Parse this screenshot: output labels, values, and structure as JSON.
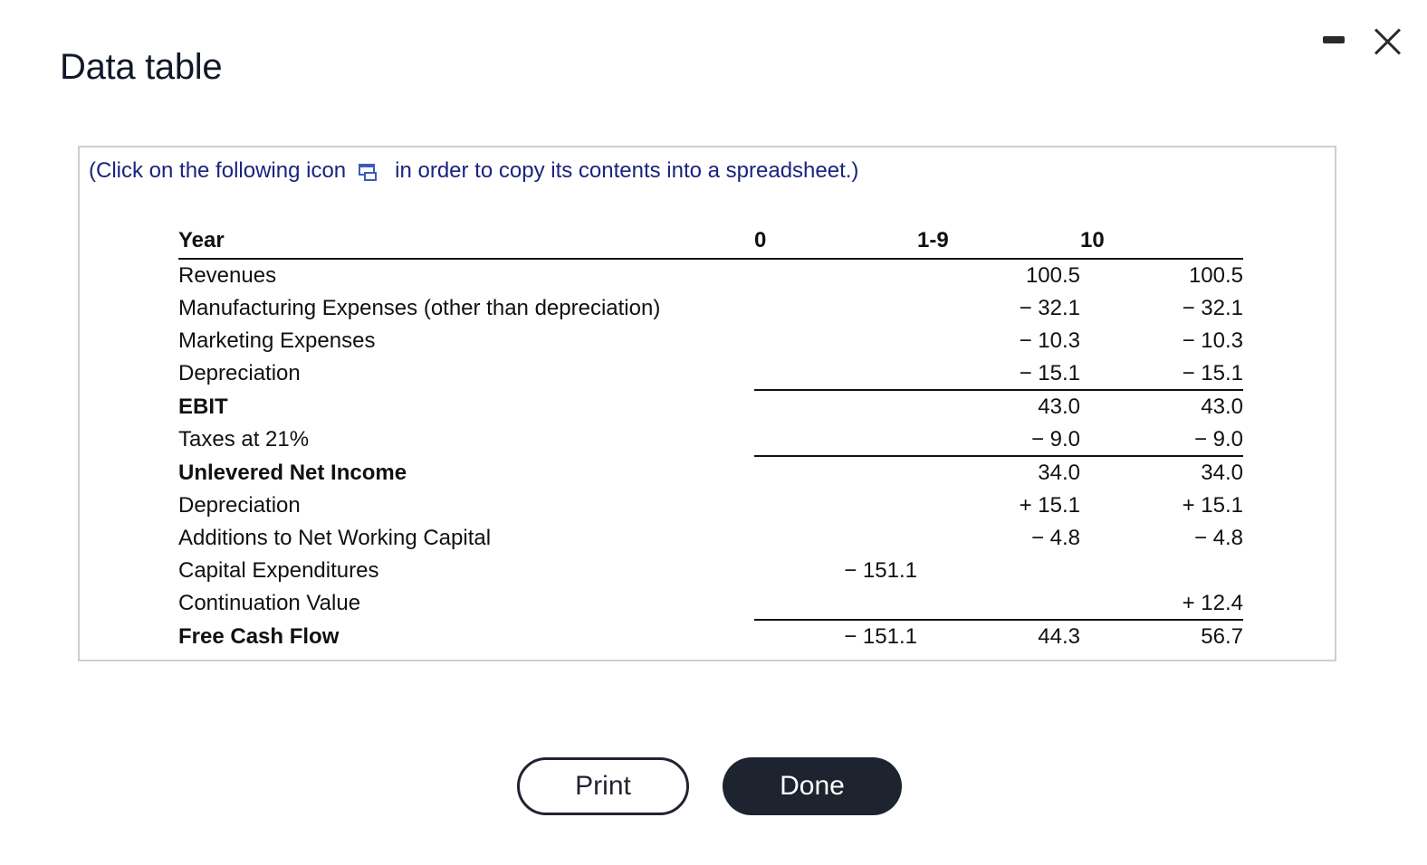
{
  "dialog": {
    "title": "Data table"
  },
  "instruction": {
    "before": "(Click on the following icon",
    "after": "in order to copy its contents into a spreadsheet.)"
  },
  "icons": {
    "copy": "copy-to-spreadsheet-icon",
    "minimize": "minimize-icon",
    "close": "close-icon"
  },
  "table": {
    "headers": [
      "Year",
      "0",
      "1-9",
      "10"
    ],
    "rows": [
      {
        "label": "Revenues",
        "y0": "",
        "y1_9": "100.5",
        "y10": "100.5"
      },
      {
        "label": "Manufacturing Expenses (other than depreciation)",
        "y0": "",
        "y1_9": "− 32.1",
        "y10": "− 32.1"
      },
      {
        "label": "Marketing Expenses",
        "y0": "",
        "y1_9": "− 10.3",
        "y10": "− 10.3"
      },
      {
        "label": "Depreciation",
        "y0": "",
        "y1_9": "− 15.1",
        "y10": "− 15.1"
      },
      {
        "label": "EBIT",
        "y0": "",
        "y1_9": "43.0",
        "y10": "43.0"
      },
      {
        "label": "Taxes at 21%",
        "y0": "",
        "y1_9": "− 9.0",
        "y10": "− 9.0"
      },
      {
        "label": "Unlevered Net Income",
        "y0": "",
        "y1_9": "34.0",
        "y10": "34.0"
      },
      {
        "label": "Depreciation",
        "y0": "",
        "y1_9": "+ 15.1",
        "y10": "+ 15.1"
      },
      {
        "label": "Additions to Net Working Capital",
        "y0": "",
        "y1_9": "− 4.8",
        "y10": "− 4.8"
      },
      {
        "label": "Capital Expenditures",
        "y0": "− 151.1",
        "y1_9": "",
        "y10": ""
      },
      {
        "label": "Continuation Value",
        "y0": "",
        "y1_9": "",
        "y10": "+ 12.4"
      },
      {
        "label": "Free Cash Flow",
        "y0": "− 151.1",
        "y1_9": "44.3",
        "y10": "56.7"
      }
    ]
  },
  "buttons": {
    "print": "Print",
    "done": "Done"
  },
  "colors": {
    "instruction_text": "#1a237e",
    "done_bg": "#1e2330",
    "panel_border": "#cfcfcf"
  }
}
